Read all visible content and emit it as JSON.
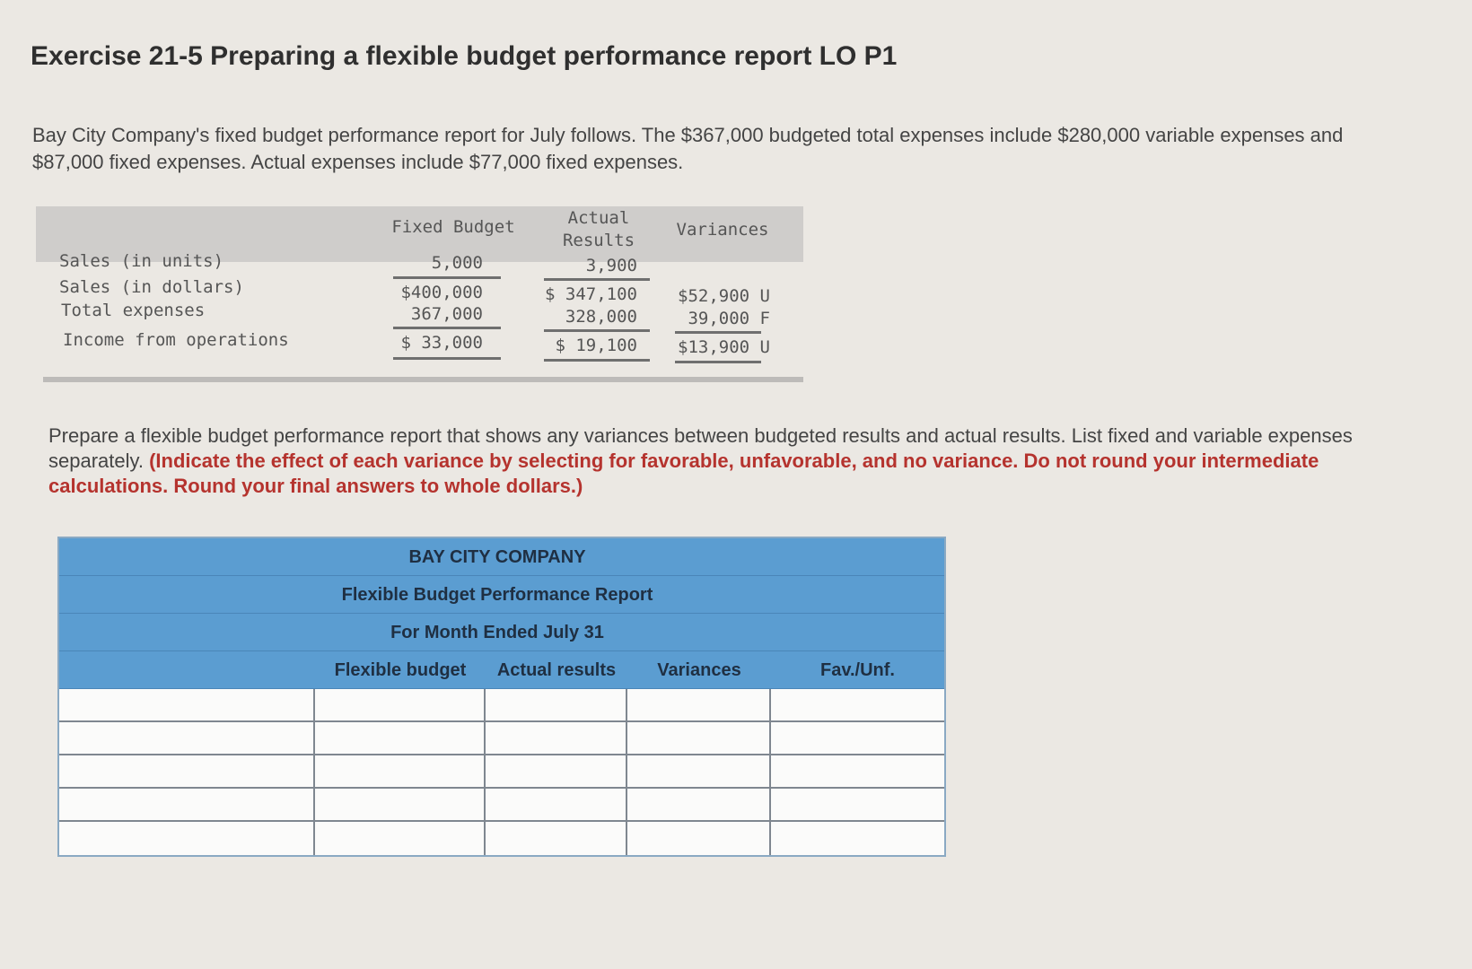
{
  "title": "Exercise 21-5 Preparing a flexible budget performance report LO P1",
  "intro": "Bay City Company's fixed budget performance report for July follows. The $367,000 budgeted total expenses include $280,000 variable expenses and $87,000 fixed expenses. Actual expenses include $77,000 fixed expenses.",
  "fixed_report": {
    "headers": {
      "fixed_budget": "Fixed Budget",
      "actual_line1": "Actual",
      "actual_line2": "Results",
      "variances": "Variances"
    },
    "rows": [
      {
        "label": "Sales (in units)",
        "fixed": "5,000",
        "actual": "3,900",
        "variance": ""
      },
      {
        "label": "Sales (in dollars)",
        "fixed": "$400,000",
        "actual": "$ 347,100",
        "variance": "$52,900 U"
      },
      {
        "label": "Total expenses",
        "fixed": "367,000",
        "actual": "328,000",
        "variance": "39,000 F"
      },
      {
        "label": "Income from operations",
        "fixed": "$ 33,000",
        "actual": "$  19,100",
        "variance": "$13,900 U"
      }
    ]
  },
  "prompt": {
    "normal": "Prepare a flexible budget performance report that shows any variances between budgeted results and actual results. List fixed and variable expenses separately. ",
    "emphasis": "(Indicate the effect of each variance by selecting  for favorable, unfavorable, and no variance. Do not round your intermediate calculations. Round your final answers to whole dollars.)"
  },
  "flex_report": {
    "company": "BAY CITY COMPANY",
    "report_name": "Flexible Budget Performance Report",
    "period": "For Month Ended July 31",
    "columns": [
      "Flexible budget",
      "Actual results",
      "Variances",
      "Fav./Unf."
    ],
    "input_rows": 5
  }
}
